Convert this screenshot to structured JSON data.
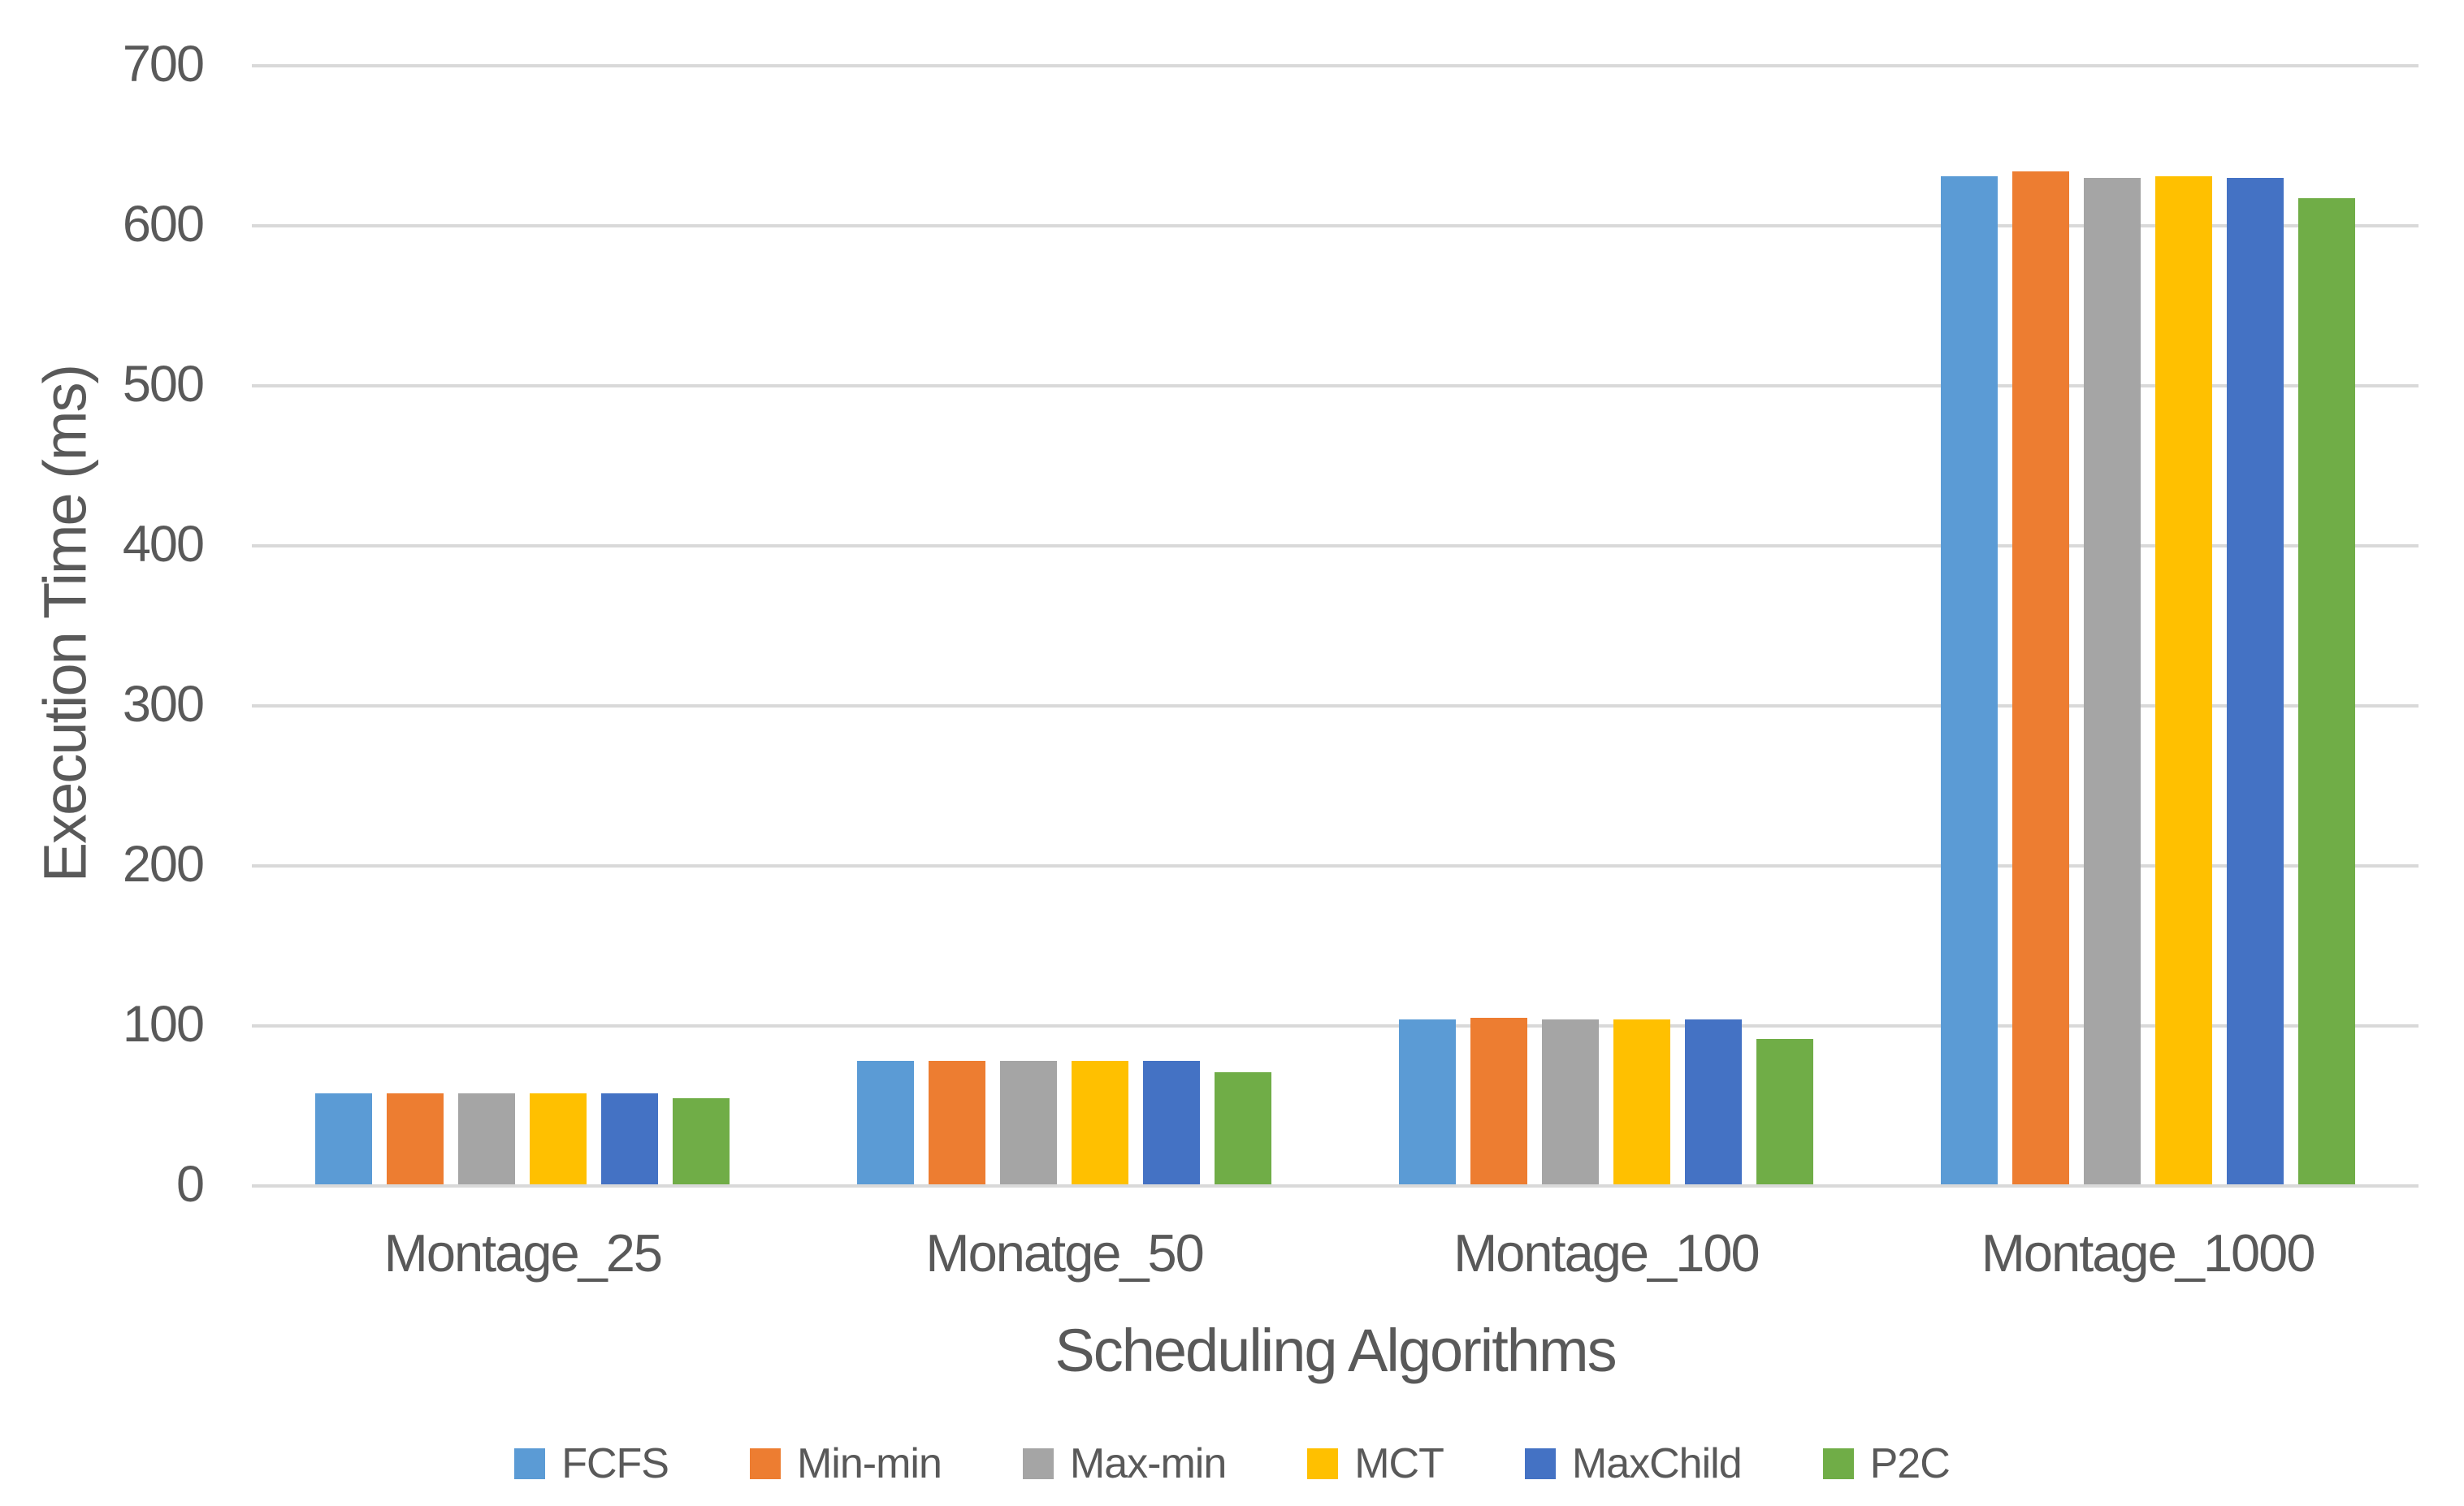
{
  "chart_data": {
    "type": "bar",
    "xlabel": "Scheduling Algorithms",
    "ylabel": "Execution Time (ms)",
    "ylim": [
      0,
      700
    ],
    "ytick_interval": 100,
    "yticks": [
      "700",
      "600",
      "500",
      "400",
      "300",
      "200",
      "100",
      "0"
    ],
    "grid": true,
    "legend_position": "bottom",
    "categories": [
      "Montage_25",
      "Monatge_50",
      "Montage_100",
      "Montage_1000"
    ],
    "series": [
      {
        "name": "FCFS",
        "color": "#5B9BD5",
        "values": [
          57,
          77,
          103,
          630
        ]
      },
      {
        "name": "Min-min",
        "color": "#ED7D31",
        "values": [
          57,
          77,
          104,
          633
        ]
      },
      {
        "name": "Max-min",
        "color": "#A5A5A5",
        "values": [
          57,
          77,
          103,
          629
        ]
      },
      {
        "name": "MCT",
        "color": "#FFC000",
        "values": [
          57,
          77,
          103,
          630
        ]
      },
      {
        "name": "MaxChild",
        "color": "#4472C4",
        "values": [
          57,
          77,
          103,
          629
        ]
      },
      {
        "name": "P2C",
        "color": "#70AD47",
        "values": [
          54,
          70,
          91,
          616
        ]
      }
    ]
  },
  "style": {
    "background": "#FFFFFF",
    "gridline_color": "#D9D9D9",
    "text_color": "#595959"
  }
}
